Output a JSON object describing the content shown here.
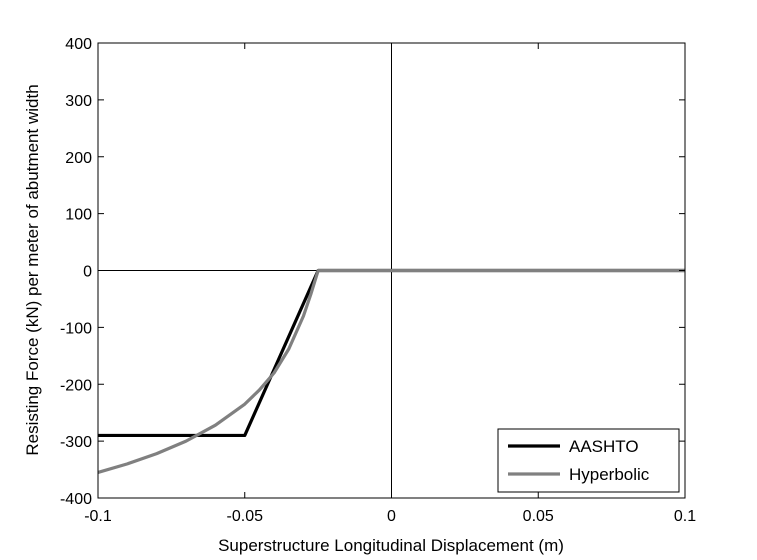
{
  "chart_data": {
    "type": "line",
    "title": "",
    "xlabel": "Superstructure Longitudinal Displacement (m)",
    "ylabel": "Resisting Force (kN) per meter of abutment width",
    "xlim": [
      -0.1,
      0.1
    ],
    "ylim": [
      -400,
      400
    ],
    "xticks": [
      -0.1,
      -0.05,
      0,
      0.05,
      0.1
    ],
    "xtick_labels": [
      "-0.1",
      "-0.05",
      "0",
      "0.05",
      "0.1"
    ],
    "yticks": [
      -400,
      -300,
      -200,
      -100,
      0,
      100,
      200,
      300,
      400
    ],
    "ytick_labels": [
      "-400",
      "-300",
      "-200",
      "-100",
      "0",
      "100",
      "200",
      "300",
      "400"
    ],
    "grid": false,
    "legend_position": "bottom-right",
    "reference_lines": {
      "x": 0,
      "y": 0
    },
    "series": [
      {
        "name": "AASHTO",
        "color": "#000000",
        "x": [
          -0.1,
          -0.05,
          -0.025,
          0.1
        ],
        "y": [
          -290,
          -290,
          0,
          0
        ]
      },
      {
        "name": "Hyperbolic",
        "color": "#808080",
        "x": [
          -0.1,
          -0.09,
          -0.08,
          -0.07,
          -0.06,
          -0.05,
          -0.045,
          -0.04,
          -0.035,
          -0.03,
          -0.0275,
          -0.025,
          0.1
        ],
        "y": [
          -355,
          -340,
          -322,
          -300,
          -272,
          -235,
          -210,
          -180,
          -138,
          -80,
          -42,
          0,
          0
        ]
      }
    ]
  }
}
